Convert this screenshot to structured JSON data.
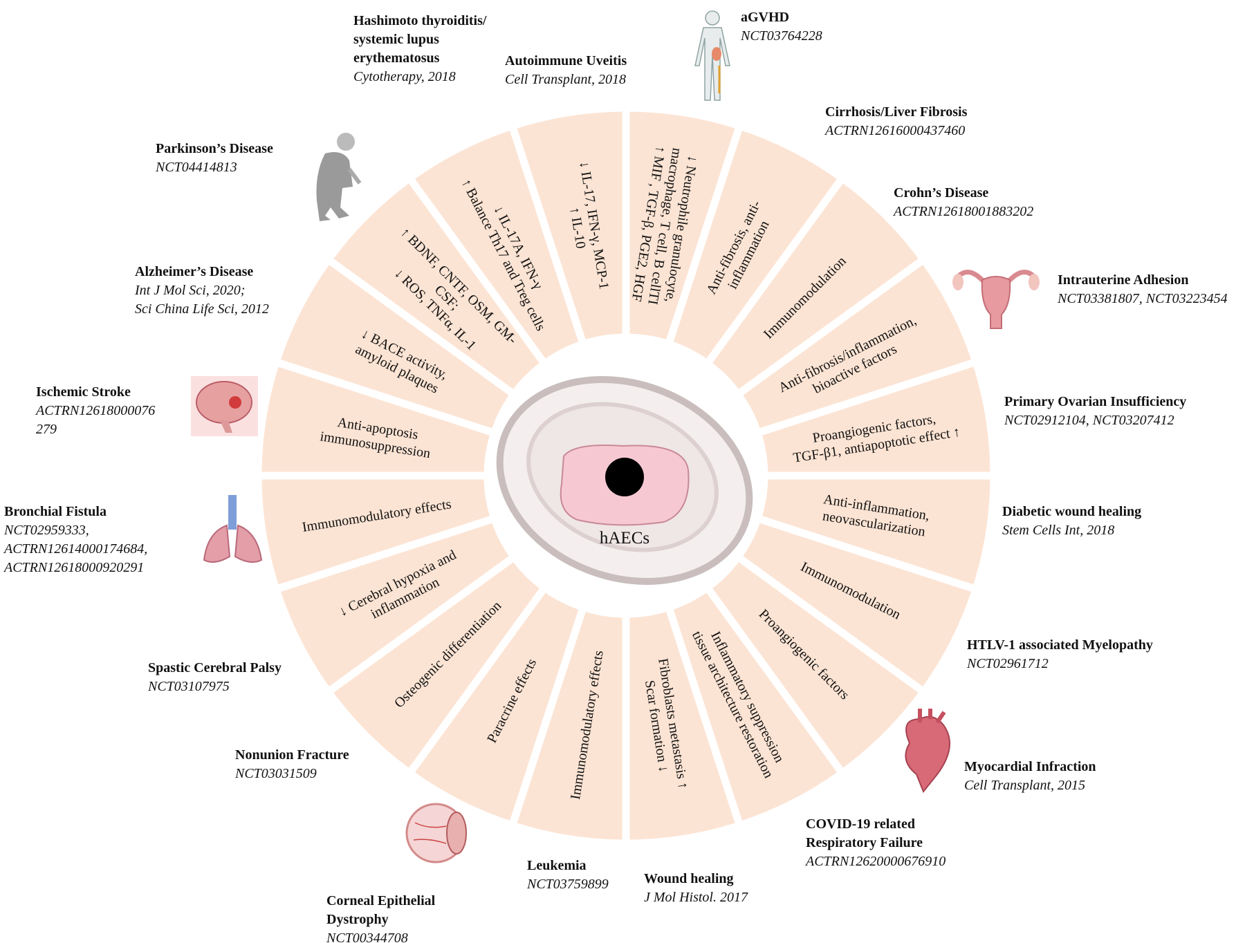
{
  "colors": {
    "wedge": "#fce4d4",
    "gap": "#ffffff",
    "text": "#111111",
    "cell_pink": "#f6c9d2",
    "nucleus": "#000000"
  },
  "center": {
    "label": "hAECs"
  },
  "wedges": [
    {
      "lines": [
        "↓ Neutrophile granulocyte,",
        "macrophage, T cell, B cellTI",
        "↑ MIF , TGF-β, PGE2, HGF"
      ]
    },
    {
      "lines": [
        "Anti-fibrosis, anti-",
        "inflammation"
      ]
    },
    {
      "lines": [
        "Immunomodulation"
      ]
    },
    {
      "lines": [
        "Anti-fibrosis/inflammation,",
        "bioactive factors"
      ]
    },
    {
      "lines": [
        "Proangiogenic factors,",
        "TGF-β1, antiapoptotic effect ↑"
      ]
    },
    {
      "lines": [
        "Anti-inflammation,",
        "neovascularization"
      ]
    },
    {
      "lines": [
        "Immunomodulation"
      ]
    },
    {
      "lines": [
        "Proangiogenic factors"
      ]
    },
    {
      "lines": [
        "Inflammatory suppression",
        "tissue architecture restoration"
      ]
    },
    {
      "lines": [
        "Fibroblasts metastasis ↑",
        "Scar formation ↓"
      ]
    },
    {
      "lines": [
        "Immunomodulatory effects"
      ]
    },
    {
      "lines": [
        "Paracrine effects"
      ]
    },
    {
      "lines": [
        "Osteogenic differentiation"
      ]
    },
    {
      "lines": [
        "↓ Cerebral hypoxia and",
        "inflammation"
      ]
    },
    {
      "lines": [
        "Immunomodulatory effects"
      ]
    },
    {
      "lines": [
        "Anti-apoptosis",
        "immunosuppression"
      ]
    },
    {
      "lines": [
        "↓ BACE activity,",
        "amyloid plaques"
      ]
    },
    {
      "lines": [
        "↑ BDNF, CNTF, OSM, GM-",
        "CSF;",
        "↓ ROS, TNFα, IL-1"
      ]
    },
    {
      "lines": [
        "↓ IL-17A, IFN-γ",
        "↑ Balance Th17 and Treg cells"
      ]
    },
    {
      "lines": [
        "↓ IL-17, IFN-γ, MCP-1",
        "↑ IL-10"
      ]
    }
  ],
  "diseases": [
    {
      "title": [
        "Hashimoto thyroiditis/",
        "systemic lupus",
        "erythematosus"
      ],
      "ref": [
        "Cytotherapy, 2018"
      ]
    },
    {
      "title": [
        "Autoimmune Uveitis"
      ],
      "ref": [
        "Cell Transplant, 2018"
      ]
    },
    {
      "title": [
        "aGVHD"
      ],
      "ref": [
        "NCT03764228"
      ]
    },
    {
      "title": [
        "Cirrhosis/Liver Fibrosis"
      ],
      "ref": [
        "ACTRN12616000437460"
      ]
    },
    {
      "title": [
        "Crohn’s Disease"
      ],
      "ref": [
        "ACTRN12618001883202"
      ]
    },
    {
      "title": [
        "Intrauterine Adhesion"
      ],
      "ref": [
        "NCT03381807, NCT03223454"
      ]
    },
    {
      "title": [
        "Primary Ovarian Insufficiency"
      ],
      "ref": [
        "NCT02912104, NCT03207412"
      ]
    },
    {
      "title": [
        "Diabetic wound healing"
      ],
      "ref": [
        "Stem Cells Int, 2018"
      ]
    },
    {
      "title": [
        "HTLV-1 associated Myelopathy"
      ],
      "ref": [
        "NCT02961712"
      ]
    },
    {
      "title": [
        "Myocardial Infraction"
      ],
      "ref": [
        "Cell Transplant, 2015"
      ]
    },
    {
      "title": [
        "COVID-19 related",
        "Respiratory Failure"
      ],
      "ref": [
        "ACTRN12620000676910"
      ]
    },
    {
      "title": [
        "Wound healing"
      ],
      "ref": [
        "J Mol Histol. 2017"
      ]
    },
    {
      "title": [
        "Leukemia"
      ],
      "ref": [
        "NCT03759899"
      ]
    },
    {
      "title": [
        "Corneal Epithelial",
        "Dystrophy"
      ],
      "ref": [
        "NCT00344708"
      ]
    },
    {
      "title": [
        "Nonunion Fracture"
      ],
      "ref": [
        "NCT03031509"
      ]
    },
    {
      "title": [
        "Spastic Cerebral Palsy"
      ],
      "ref": [
        "NCT03107975"
      ]
    },
    {
      "title": [
        "Bronchial Fistula"
      ],
      "ref": [
        "NCT02959333,",
        "ACTRN12614000174684,",
        "ACTRN12618000920291"
      ]
    },
    {
      "title": [
        "Ischemic Stroke"
      ],
      "ref": [
        "ACTRN12618000076",
        "279"
      ]
    },
    {
      "title": [
        "Alzheimer’s Disease"
      ],
      "ref": [
        "Int J Mol Sci, 2020;",
        "Sci China Life Sci, 2012"
      ]
    },
    {
      "title": [
        "Parkinson’s Disease"
      ],
      "ref": [
        "NCT04414813"
      ]
    }
  ],
  "icons": [
    "human-body-icon",
    "elderly-person-icon",
    "uterus-icon",
    "brain-icon",
    "lungs-icon",
    "heart-icon",
    "eye-icon"
  ]
}
